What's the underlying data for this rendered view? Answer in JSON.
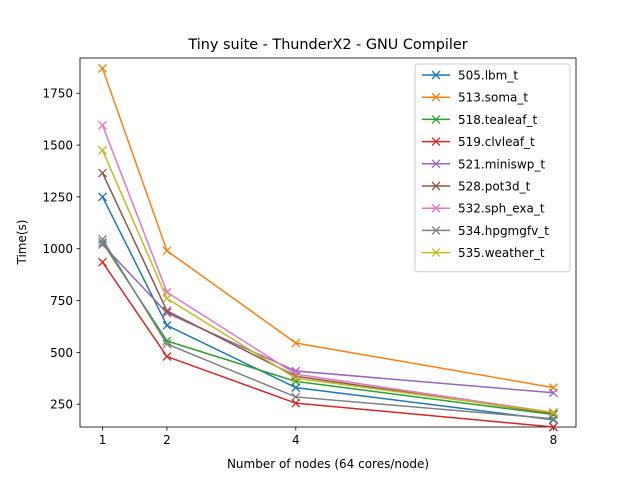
{
  "chart_data": {
    "type": "line",
    "title": "Tiny suite - ThunderX2 - GNU Compiler",
    "xlabel": "Number of nodes (64 cores/node)",
    "ylabel": "Time(s)",
    "x": [
      1,
      2,
      4,
      8
    ],
    "x_ticks": [
      1,
      2,
      4,
      8
    ],
    "x_tick_labels": [
      "1",
      "2",
      "4",
      "8"
    ],
    "y_ticks": [
      250,
      500,
      750,
      1000,
      1250,
      1500,
      1750
    ],
    "y_tick_labels": [
      "250",
      "500",
      "750",
      "1000",
      "1250",
      "1500",
      "1750"
    ],
    "xlim": [
      0.65,
      8.35
    ],
    "ylim": [
      140,
      1920
    ],
    "grid": false,
    "legend_position": "top-right",
    "marker": "x",
    "series": [
      {
        "name": "505.lbm_t",
        "color": "#1f77b4",
        "values": [
          1250,
          630,
          330,
          175
        ]
      },
      {
        "name": "513.soma_t",
        "color": "#ff7f0e",
        "values": [
          1870,
          990,
          545,
          330
        ]
      },
      {
        "name": "518.tealeaf_t",
        "color": "#2ca02c",
        "values": [
          1030,
          555,
          360,
          200
        ]
      },
      {
        "name": "519.clvleaf_t",
        "color": "#d62728",
        "values": [
          935,
          480,
          255,
          140
        ]
      },
      {
        "name": "521.miniswp_t",
        "color": "#9467bd",
        "values": [
          1020,
          690,
          410,
          305
        ]
      },
      {
        "name": "528.pot3d_t",
        "color": "#8c564b",
        "values": [
          1365,
          700,
          385,
          205
        ]
      },
      {
        "name": "532.sph_exa_t",
        "color": "#e377c2",
        "values": [
          1595,
          790,
          395,
          210
        ]
      },
      {
        "name": "534.hpgmgfv_t",
        "color": "#7f7f7f",
        "values": [
          1045,
          540,
          285,
          180
        ]
      },
      {
        "name": "535.weather_t",
        "color": "#bcbd22",
        "values": [
          1475,
          760,
          375,
          210
        ]
      }
    ]
  }
}
